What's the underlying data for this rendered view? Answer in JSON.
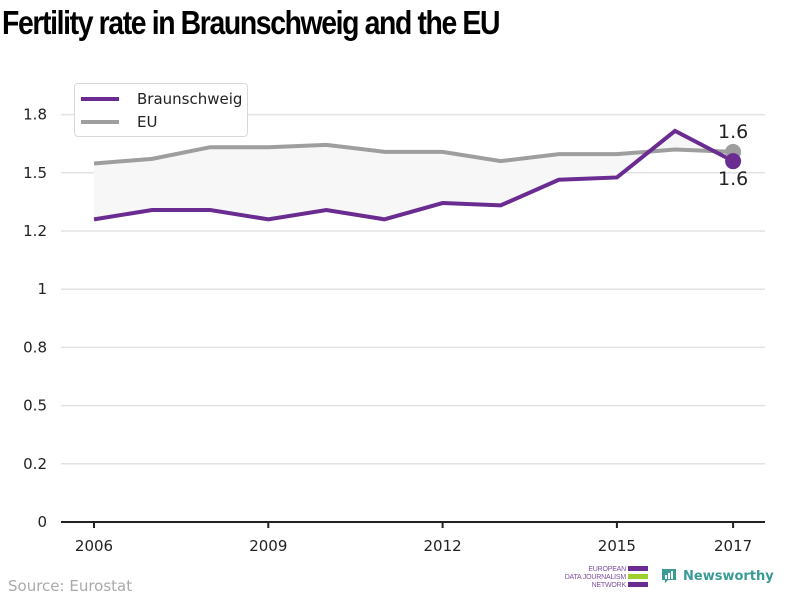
{
  "title": "Fertility rate in Braunschweig and the EU",
  "source": "Source: Eurostat",
  "logos": {
    "edjnet": [
      "EUROPEAN",
      "DATA JOURNALISM",
      "NETWORK"
    ],
    "newsworthy": "Newsworthy"
  },
  "colors": {
    "braunschweig": "#6a2c91",
    "eu": "#9e9e9e",
    "fill_between": "#f7f7f7",
    "grid": "#e2e2e2",
    "axis": "#222222",
    "edjnet_purple": "#6a2c91",
    "edjnet_green": "#9bcf2e",
    "newsworthy_teal": "#3a9a94"
  },
  "chart_data": {
    "type": "line",
    "title": "Fertility rate in Braunschweig and the EU",
    "xlabel": "",
    "ylabel": "",
    "x": [
      2006,
      2007,
      2008,
      2009,
      2010,
      2011,
      2012,
      2013,
      2014,
      2015,
      2016,
      2017
    ],
    "x_ticks": [
      2006,
      2009,
      2012,
      2015,
      2017
    ],
    "x_tick_labels": [
      "2006",
      "2009",
      "2012",
      "2015",
      "2017"
    ],
    "ylim": [
      0,
      1.85
    ],
    "y_ticks": [
      0,
      0.25,
      0.5,
      0.75,
      1,
      1.25,
      1.5,
      1.75
    ],
    "y_tick_labels": [
      "0",
      "0.2",
      "0.5",
      "0.8",
      "1",
      "1.2",
      "1.5",
      "1.8"
    ],
    "grid": true,
    "legend": "top-left",
    "shade_between_series": true,
    "series": [
      {
        "name": "Braunschweig",
        "values": [
          1.3,
          1.34,
          1.34,
          1.3,
          1.34,
          1.3,
          1.37,
          1.36,
          1.47,
          1.48,
          1.68,
          1.55
        ],
        "end_label": "1.6"
      },
      {
        "name": "EU",
        "values": [
          1.54,
          1.56,
          1.61,
          1.61,
          1.62,
          1.59,
          1.59,
          1.55,
          1.58,
          1.58,
          1.6,
          1.59
        ],
        "end_label": "1.6"
      }
    ]
  }
}
